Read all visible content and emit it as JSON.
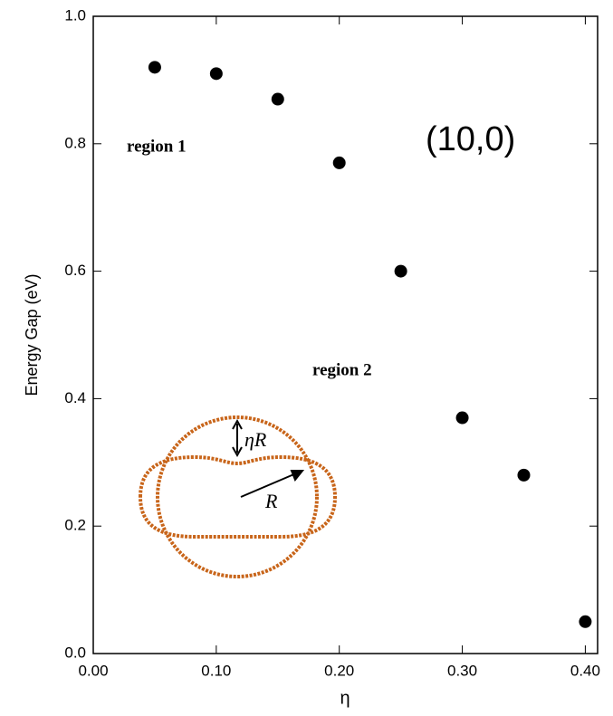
{
  "chart_data": {
    "type": "scatter",
    "x_label": "η",
    "y_label": "Energy Gap (eV)",
    "x": [
      0.05,
      0.1,
      0.15,
      0.2,
      0.25,
      0.3,
      0.35,
      0.4
    ],
    "values": [
      0.92,
      0.91,
      0.87,
      0.77,
      0.6,
      0.37,
      0.28,
      0.05
    ],
    "color": "#000000",
    "xlim": [
      0,
      0.41
    ],
    "xticks": [
      {
        "value": 0,
        "label": "0.00"
      },
      {
        "value": 0.1,
        "label": "0.10"
      },
      {
        "value": 0.2,
        "label": "0.20"
      },
      {
        "value": 0.3,
        "label": "0.30"
      },
      {
        "value": 0.4,
        "label": "0.40"
      }
    ],
    "ylim": [
      0,
      1
    ],
    "yticks": [
      {
        "value": 0,
        "label": "0.0"
      },
      {
        "value": 0.2,
        "label": "0.2"
      },
      {
        "value": 0.4,
        "label": "0.4"
      },
      {
        "value": 0.6,
        "label": "0.6"
      },
      {
        "value": 0.8,
        "label": "0.8"
      },
      {
        "value": 1,
        "label": "1.0"
      }
    ],
    "annotations": [
      "region 1",
      "region 2",
      "(10,0)"
    ],
    "inset_labels": [
      "ηR",
      "R"
    ]
  }
}
